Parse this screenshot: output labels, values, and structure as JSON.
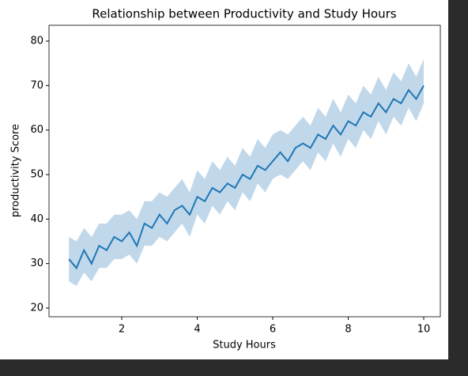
{
  "chart_data": {
    "type": "line",
    "title": "Relationship between Productivity and Study Hours",
    "x_label": "Study Hours",
    "y_label": "productivity Score",
    "color": "#1f77b4",
    "band_color": "#a6c8e3",
    "x": [
      0.6,
      0.8,
      1.0,
      1.2,
      1.4,
      1.6,
      1.8,
      2.0,
      2.2,
      2.4,
      2.6,
      2.8,
      3.0,
      3.2,
      3.4,
      3.6,
      3.8,
      4.0,
      4.2,
      4.4,
      4.6,
      4.8,
      5.0,
      5.2,
      5.4,
      5.6,
      5.8,
      6.0,
      6.2,
      6.4,
      6.6,
      6.8,
      7.0,
      7.2,
      7.4,
      7.6,
      7.8,
      8.0,
      8.2,
      8.4,
      8.6,
      8.8,
      9.0,
      9.2,
      9.4,
      9.6,
      9.8,
      10.0
    ],
    "values": [
      31,
      29,
      33,
      30,
      34,
      33,
      36,
      35,
      37,
      34,
      39,
      38,
      41,
      39,
      42,
      43,
      41,
      45,
      44,
      47,
      46,
      48,
      47,
      50,
      49,
      52,
      51,
      53,
      55,
      53,
      56,
      57,
      56,
      59,
      58,
      61,
      59,
      62,
      61,
      64,
      63,
      66,
      64,
      67,
      66,
      69,
      67,
      70
    ],
    "lower": [
      26,
      25,
      28,
      26,
      29,
      29,
      31,
      31,
      32,
      30,
      34,
      34,
      36,
      35,
      37,
      39,
      36,
      41,
      39,
      43,
      41,
      44,
      42,
      46,
      44,
      48,
      46,
      49,
      50,
      49,
      51,
      53,
      51,
      55,
      53,
      57,
      54,
      58,
      56,
      60,
      58,
      62,
      59,
      63,
      61,
      65,
      62,
      66
    ],
    "upper": [
      36,
      35,
      38,
      36,
      39,
      39,
      41,
      41,
      42,
      40,
      44,
      44,
      46,
      45,
      47,
      49,
      46,
      51,
      49,
      53,
      51,
      54,
      52,
      56,
      54,
      58,
      56,
      59,
      60,
      59,
      61,
      63,
      61,
      65,
      63,
      67,
      64,
      68,
      66,
      70,
      68,
      72,
      69,
      73,
      71,
      75,
      72,
      76
    ],
    "xlim": [
      0.073,
      10.44
    ],
    "ylim": [
      18.05,
      83.55
    ],
    "xticks": [
      2,
      4,
      6,
      8,
      10
    ],
    "yticks": [
      20,
      30,
      40,
      50,
      60,
      70,
      80
    ],
    "grid": false
  }
}
